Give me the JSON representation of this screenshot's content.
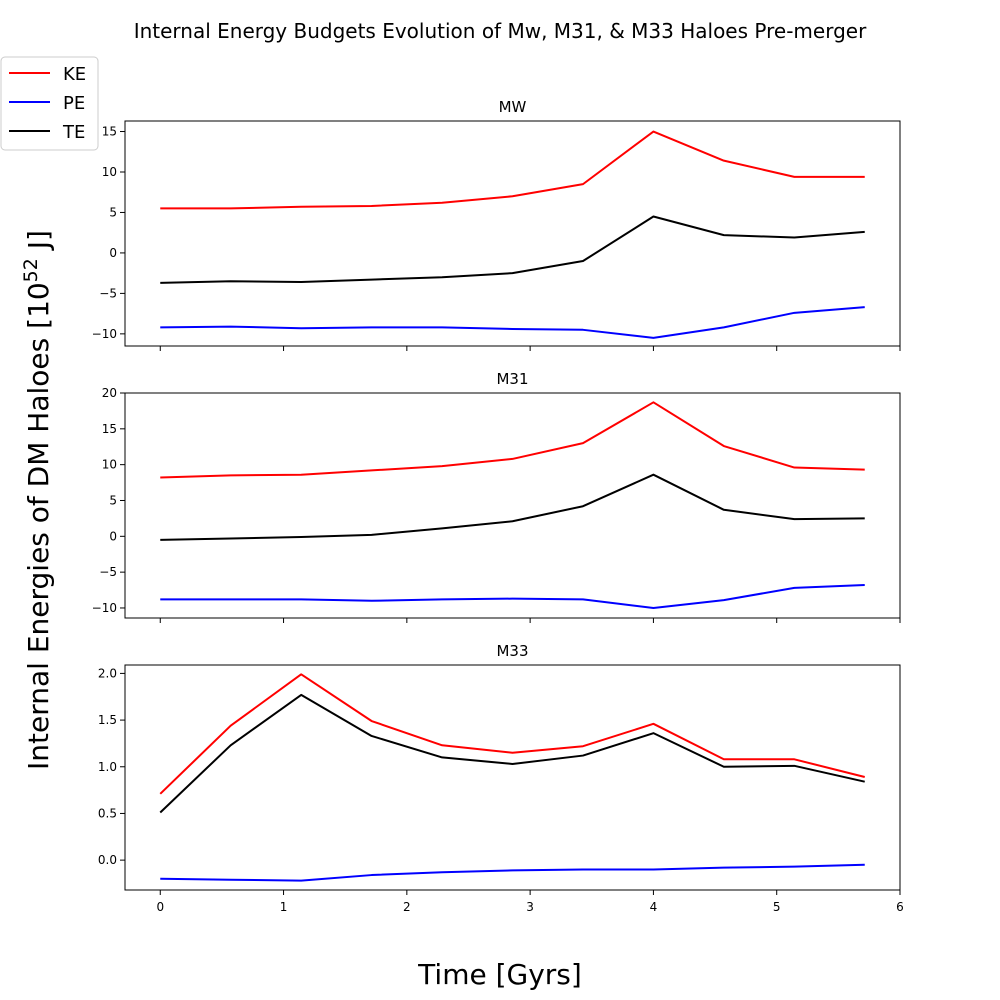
{
  "chart_data": {
    "type": "line",
    "title": "Internal Energy Budgets Evolution of Mw, M31, & M33 Haloes Pre-merger",
    "xlabel": "Time [Gyrs]",
    "ylabel": "Internal Energies of DM Haloes [10",
    "ylabel_exp": "52",
    "ylabel_unit": " J]",
    "x": [
      0,
      0.571,
      1.143,
      1.714,
      2.286,
      2.857,
      3.429,
      4.0,
      4.571,
      5.143,
      5.714
    ],
    "xlim": [
      -0.286,
      6.0
    ],
    "xticks": [
      0,
      1,
      2,
      3,
      4,
      5,
      6
    ],
    "legend": {
      "placement": "top-left",
      "entries": [
        {
          "label": "KE",
          "color": "#ff0000"
        },
        {
          "label": "PE",
          "color": "#0000ff"
        },
        {
          "label": "TE",
          "color": "#000000"
        }
      ]
    },
    "panels": [
      {
        "title": "MW",
        "ylim": [
          -11.5,
          16.3
        ],
        "yticks": [
          -10,
          -5,
          0,
          5,
          10,
          15
        ],
        "yticklabels": [
          "−10",
          "−5",
          "0",
          "5",
          "10",
          "15"
        ],
        "series": [
          {
            "name": "KE",
            "color": "#ff0000",
            "values": [
              5.5,
              5.5,
              5.7,
              5.8,
              6.2,
              7.0,
              8.5,
              15.0,
              11.4,
              9.4,
              9.4
            ]
          },
          {
            "name": "PE",
            "color": "#0000ff",
            "values": [
              -9.2,
              -9.1,
              -9.3,
              -9.2,
              -9.2,
              -9.4,
              -9.5,
              -10.5,
              -9.2,
              -7.4,
              -6.7
            ]
          },
          {
            "name": "TE",
            "color": "#000000",
            "values": [
              -3.7,
              -3.5,
              -3.6,
              -3.3,
              -3.0,
              -2.5,
              -1.0,
              4.5,
              2.2,
              1.9,
              2.6
            ]
          }
        ]
      },
      {
        "title": "M31",
        "ylim": [
          -11.4,
          20.0
        ],
        "yticks": [
          -10,
          -5,
          0,
          5,
          10,
          15,
          20
        ],
        "yticklabels": [
          "−10",
          "−5",
          "0",
          "5",
          "10",
          "15",
          "20"
        ],
        "series": [
          {
            "name": "KE",
            "color": "#ff0000",
            "values": [
              8.2,
              8.5,
              8.6,
              9.2,
              9.8,
              10.8,
              13.0,
              18.7,
              12.6,
              9.6,
              9.3
            ]
          },
          {
            "name": "PE",
            "color": "#0000ff",
            "values": [
              -8.8,
              -8.8,
              -8.8,
              -9.0,
              -8.8,
              -8.7,
              -8.8,
              -10.0,
              -8.9,
              -7.2,
              -6.8
            ]
          },
          {
            "name": "TE",
            "color": "#000000",
            "values": [
              -0.5,
              -0.3,
              -0.1,
              0.2,
              1.1,
              2.1,
              4.2,
              8.6,
              3.7,
              2.4,
              2.5
            ]
          }
        ]
      },
      {
        "title": "M33",
        "ylim": [
          -0.32,
          2.09
        ],
        "yticks": [
          0.0,
          0.5,
          1.0,
          1.5,
          2.0
        ],
        "yticklabels": [
          "0.0",
          "0.5",
          "1.0",
          "1.5",
          "2.0"
        ],
        "series": [
          {
            "name": "KE",
            "color": "#ff0000",
            "values": [
              0.71,
              1.44,
              1.99,
              1.49,
              1.23,
              1.15,
              1.22,
              1.46,
              1.08,
              1.08,
              0.89
            ]
          },
          {
            "name": "PE",
            "color": "#0000ff",
            "values": [
              -0.2,
              -0.21,
              -0.22,
              -0.16,
              -0.13,
              -0.11,
              -0.1,
              -0.1,
              -0.08,
              -0.07,
              -0.05
            ]
          },
          {
            "name": "TE",
            "color": "#000000",
            "values": [
              0.51,
              1.23,
              1.77,
              1.33,
              1.1,
              1.03,
              1.12,
              1.36,
              1.0,
              1.01,
              0.84
            ]
          }
        ]
      }
    ]
  }
}
